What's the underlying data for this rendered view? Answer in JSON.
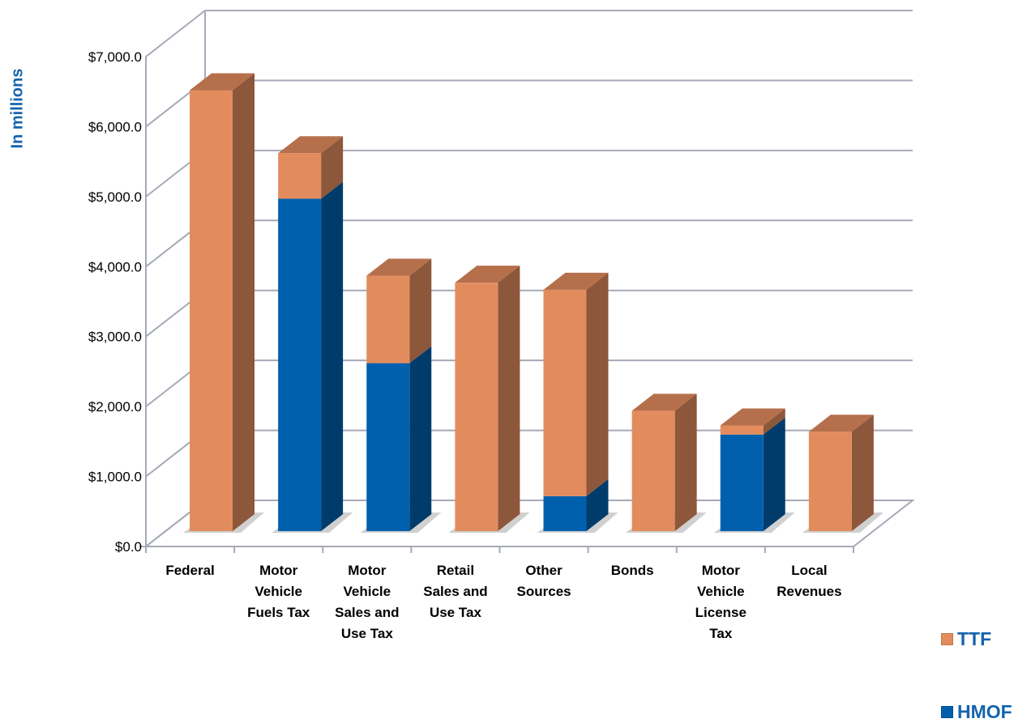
{
  "chart_data": {
    "type": "bar",
    "stacked": true,
    "three_d": true,
    "ylabel": "In millions",
    "xlabel": "",
    "title": "",
    "ylim": [
      0,
      7000
    ],
    "yticks": [
      0,
      1000,
      2000,
      3000,
      4000,
      5000,
      6000,
      7000
    ],
    "ytick_labels": [
      "$0.0",
      "$1,000.0",
      "$2,000.0",
      "$3,000.0",
      "$4,000.0",
      "$5,000.0",
      "$6,000.0",
      "$7,000.0"
    ],
    "categories": [
      [
        "Federal"
      ],
      [
        "Motor",
        "Vehicle",
        "Fuels Tax"
      ],
      [
        "Motor",
        "Vehicle",
        "Sales and",
        "Use Tax"
      ],
      [
        "Retail",
        "Sales and",
        "Use Tax"
      ],
      [
        "Other",
        "Sources"
      ],
      [
        "Bonds"
      ],
      [
        "Motor",
        "Vehicle",
        "License",
        "Tax"
      ],
      [
        "Local",
        "Revenues"
      ]
    ],
    "series": [
      {
        "name": "HMOF",
        "color": "#0060ad",
        "values": [
          0,
          4750,
          2400,
          0,
          500,
          0,
          1380,
          0
        ]
      },
      {
        "name": "TTF",
        "color": "#e28c5e",
        "values": [
          6300,
          650,
          1250,
          3550,
          2950,
          1720,
          130,
          1420
        ]
      }
    ],
    "grid": true,
    "legend_position": "right"
  },
  "legend": [
    {
      "label": "TTF",
      "color": "#e28c5e"
    },
    {
      "label": "HMOF",
      "color": "#0060ad"
    }
  ]
}
